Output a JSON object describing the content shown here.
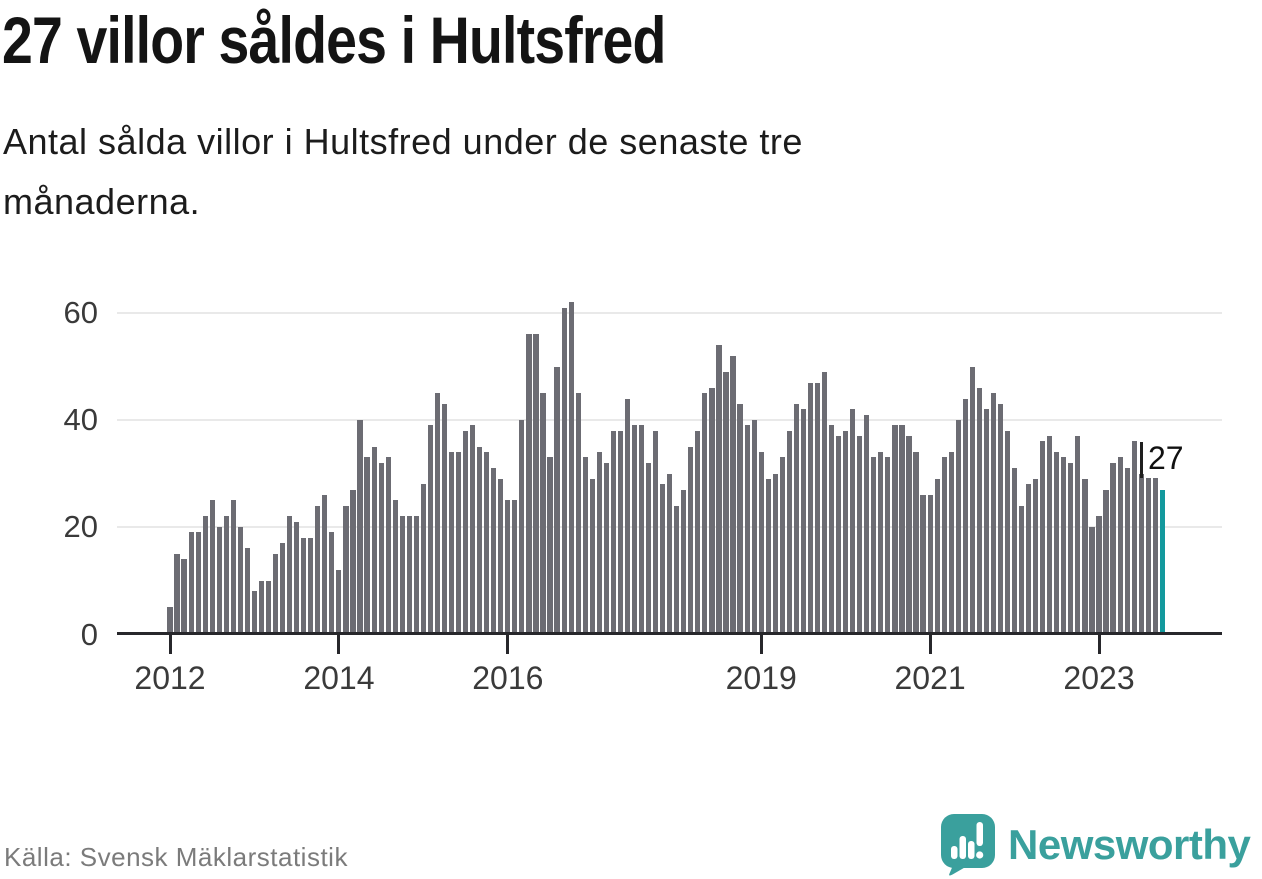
{
  "header": {
    "title": "27 villor såldes i Hultsfred",
    "subtitle": "Antal sålda villor i Hultsfred under de senaste tre\nmånaderna."
  },
  "chart_data": {
    "type": "bar",
    "title": "27 villor såldes i Hultsfred",
    "subtitle": "Antal sålda villor i Hultsfred under de senaste tre månaderna.",
    "x_unit": "month",
    "start_month": "2012-01",
    "end_month": "2023-10",
    "values": [
      5,
      15,
      14,
      19,
      19,
      22,
      25,
      20,
      22,
      25,
      20,
      16,
      8,
      10,
      10,
      15,
      17,
      22,
      21,
      18,
      18,
      24,
      26,
      19,
      12,
      24,
      27,
      40,
      33,
      35,
      32,
      33,
      25,
      22,
      22,
      22,
      28,
      39,
      45,
      43,
      34,
      34,
      38,
      39,
      35,
      34,
      31,
      29,
      25,
      25,
      40,
      56,
      56,
      45,
      33,
      50,
      61,
      62,
      45,
      33,
      29,
      34,
      32,
      38,
      38,
      44,
      39,
      39,
      32,
      38,
      28,
      30,
      24,
      27,
      35,
      38,
      45,
      46,
      54,
      49,
      52,
      43,
      39,
      40,
      34,
      29,
      30,
      33,
      38,
      43,
      42,
      47,
      47,
      49,
      39,
      37,
      38,
      42,
      37,
      41,
      33,
      34,
      33,
      39,
      39,
      37,
      34,
      26,
      26,
      29,
      33,
      34,
      40,
      44,
      50,
      46,
      42,
      45,
      43,
      38,
      31,
      24,
      28,
      29,
      36,
      37,
      34,
      33,
      32,
      37,
      29,
      20,
      22,
      27,
      32,
      33,
      31,
      36,
      30,
      30,
      30,
      27
    ],
    "y_ticks": [
      0,
      20,
      40,
      60
    ],
    "ylim": [
      0,
      65
    ],
    "x_ticks": [
      {
        "label": "2012",
        "month": 0
      },
      {
        "label": "2014",
        "month": 24
      },
      {
        "label": "2016",
        "month": 48
      },
      {
        "label": "2019",
        "month": 84
      },
      {
        "label": "2021",
        "month": 108
      },
      {
        "label": "2023",
        "month": 132
      }
    ],
    "grid": "horizontal",
    "legend": "none",
    "bar_color": "#6c6c73",
    "highlight_color": "#13999d",
    "last_value_label": "27"
  },
  "footer": {
    "source": "Källa: Svensk Mäklarstatistik",
    "brand": "Newsworthy",
    "brand_color": "#3aa09d"
  }
}
